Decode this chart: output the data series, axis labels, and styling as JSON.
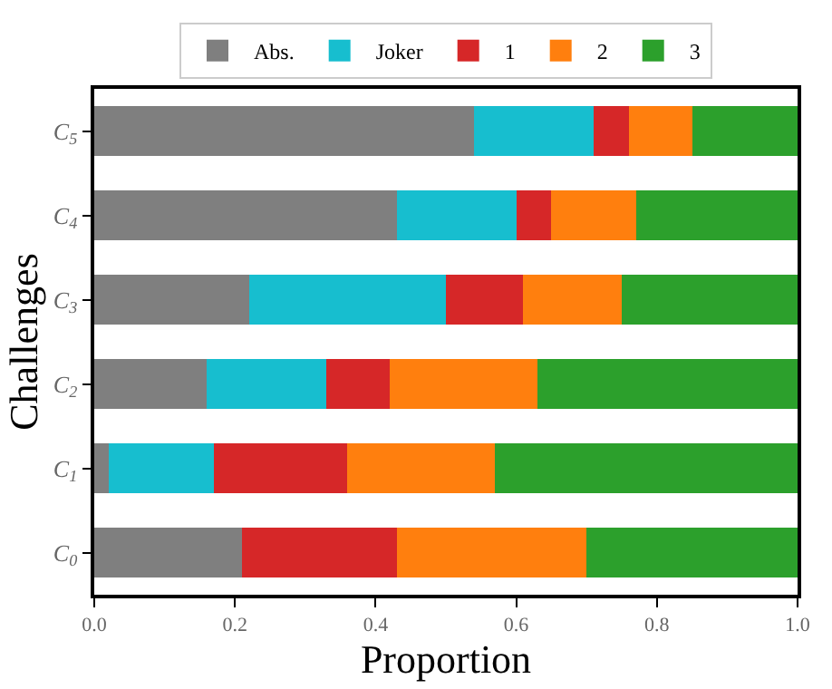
{
  "chart_data": {
    "type": "bar",
    "orientation": "horizontal",
    "stacked": true,
    "xlabel": "Proportion",
    "ylabel": "Challenges",
    "categories": [
      "C$_{5}$",
      "C$_{4}$",
      "C$_{3}$",
      "C$_{2}$",
      "C$_{1}$",
      "C$_{0}$"
    ],
    "series": [
      {
        "name": "Abs.",
        "color": "#7f7f7f",
        "values": [
          0.54,
          0.43,
          0.22,
          0.16,
          0.02,
          0.21
        ]
      },
      {
        "name": "Joker",
        "color": "#17becf",
        "values": [
          0.17,
          0.17,
          0.28,
          0.17,
          0.15,
          0.0
        ]
      },
      {
        "name": "1",
        "color": "#d62728",
        "values": [
          0.05,
          0.05,
          0.11,
          0.09,
          0.19,
          0.22
        ]
      },
      {
        "name": "2",
        "color": "#ff7f0e",
        "values": [
          0.09,
          0.12,
          0.14,
          0.21,
          0.21,
          0.27
        ]
      },
      {
        "name": "3",
        "color": "#2ca02c",
        "values": [
          0.15,
          0.23,
          0.25,
          0.37,
          0.43,
          0.3
        ]
      }
    ],
    "xlim": [
      0,
      1
    ],
    "xticks": [
      "0.0",
      0.2,
      0.4,
      0.6,
      0.8,
      "1.0"
    ],
    "legend": "top"
  }
}
